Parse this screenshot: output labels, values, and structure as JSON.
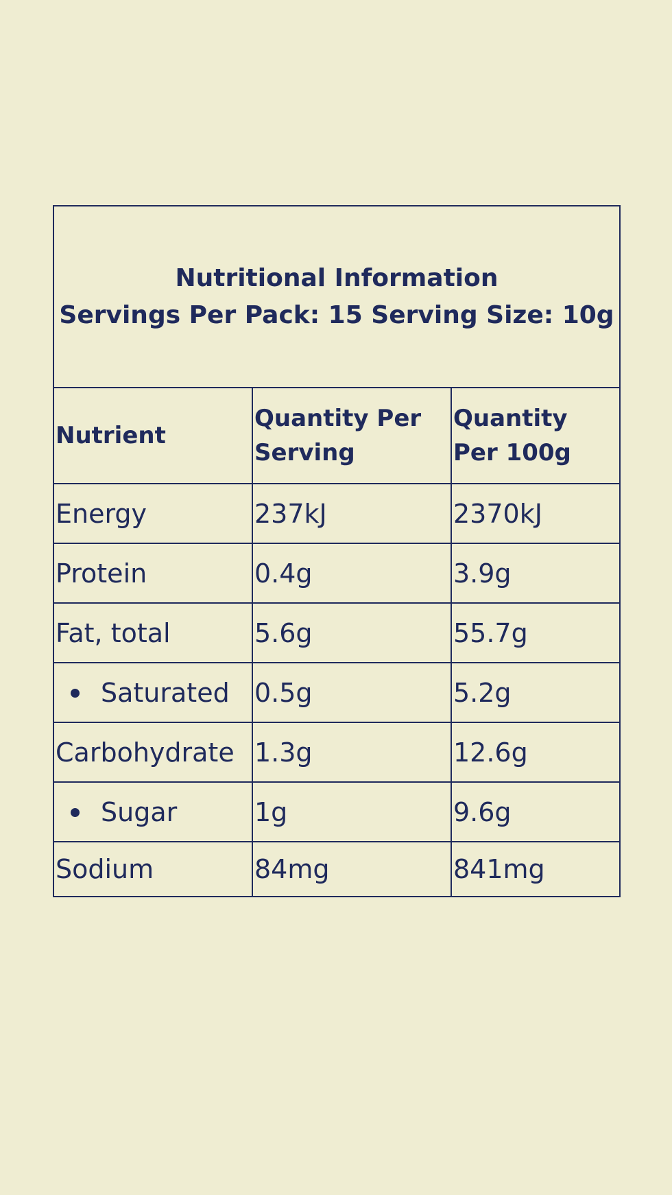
{
  "header": {
    "title": "Nutritional Information",
    "subtitle": "Servings Per Pack: 15 Serving Size: 10g"
  },
  "table": {
    "columns": [
      "Nutrient",
      "Quantity Per Serving",
      "Quantity Per 100g"
    ],
    "rows": [
      [
        "Energy",
        "237kJ",
        "2370kJ"
      ],
      [
        "Protein",
        "0.4g",
        "3.9g"
      ],
      [
        "Fat, total",
        "5.6g",
        "55.7g"
      ],
      [
        "Saturated",
        "0.5g",
        "5.2g"
      ],
      [
        "Carbohydrate",
        "1.3g",
        "12.6g"
      ],
      [
        "Sugar",
        "1g",
        "9.6g"
      ],
      [
        "Sodium",
        "84mg",
        "841mg"
      ]
    ]
  }
}
